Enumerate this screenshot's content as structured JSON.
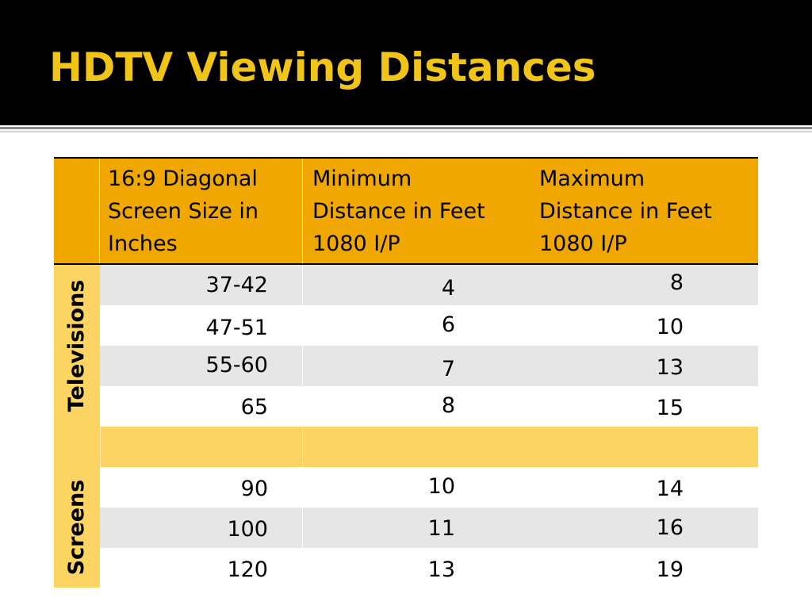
{
  "title": "HDTV Viewing Distances",
  "colors": {
    "title_text": "#f0c419",
    "header_bg": "#f0a800",
    "side_bg": "#fcd462",
    "row_gray": "#e6e6e6"
  },
  "table": {
    "headers": [
      "",
      "16:9 Diagonal Screen Size in Inches",
      "Minimum Distance in Feet 1080 I/P",
      "Maximum Distance in Feet 1080 I/P"
    ],
    "header_lines": {
      "size": [
        "16:9 Diagonal",
        "Screen Size in",
        "Inches"
      ],
      "min": [
        "Minimum",
        "Distance in Feet",
        "1080 I/P"
      ],
      "max": [
        "Maximum",
        "Distance in Feet",
        "1080 I/P"
      ]
    },
    "groups": [
      {
        "label": "Televisions",
        "rows": [
          {
            "size": "37-42",
            "min": "4",
            "max": "8"
          },
          {
            "size": "47-51",
            "min": "6",
            "max": "10"
          },
          {
            "size": "55-60",
            "min": "7",
            "max": "13"
          },
          {
            "size": "65",
            "min": "8",
            "max": "15"
          }
        ]
      },
      {
        "label": "Screens",
        "rows": [
          {
            "size": "90",
            "min": "10",
            "max": "14"
          },
          {
            "size": "100",
            "min": "11",
            "max": "16"
          },
          {
            "size": "120",
            "min": "13",
            "max": "19"
          }
        ]
      }
    ]
  }
}
